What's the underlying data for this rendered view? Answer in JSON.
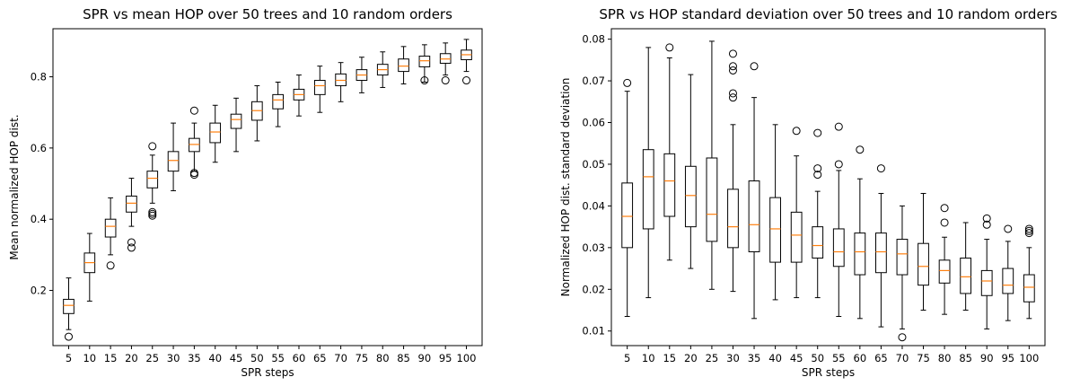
{
  "chart_data": [
    {
      "type": "box",
      "title": "SPR vs mean HOP over 50 trees and 10 random orders",
      "xlabel": "SPR steps",
      "ylabel": "Mean normalized HOP dist.",
      "categories": [
        "5",
        "10",
        "15",
        "20",
        "25",
        "30",
        "35",
        "40",
        "45",
        "50",
        "55",
        "60",
        "65",
        "70",
        "75",
        "80",
        "85",
        "90",
        "95",
        "100"
      ],
      "ylim": [
        0.045,
        0.935
      ],
      "yticks": [
        0.2,
        0.4,
        0.6,
        0.8
      ],
      "ytick_labels": [
        "0.2",
        "0.4",
        "0.6",
        "0.8"
      ],
      "grid": false,
      "boxes": [
        {
          "whislo": 0.09,
          "q1": 0.135,
          "med": 0.158,
          "q3": 0.175,
          "whishi": 0.235,
          "fliers": [
            0.07
          ]
        },
        {
          "whislo": 0.17,
          "q1": 0.25,
          "med": 0.278,
          "q3": 0.305,
          "whishi": 0.36,
          "fliers": []
        },
        {
          "whislo": 0.3,
          "q1": 0.35,
          "med": 0.38,
          "q3": 0.4,
          "whishi": 0.46,
          "fliers": [
            0.27
          ]
        },
        {
          "whislo": 0.38,
          "q1": 0.42,
          "med": 0.445,
          "q3": 0.465,
          "whishi": 0.515,
          "fliers": [
            0.335,
            0.32
          ]
        },
        {
          "whislo": 0.445,
          "q1": 0.488,
          "med": 0.515,
          "q3": 0.535,
          "whishi": 0.58,
          "fliers": [
            0.605,
            0.42,
            0.415,
            0.41
          ]
        },
        {
          "whislo": 0.48,
          "q1": 0.535,
          "med": 0.565,
          "q3": 0.59,
          "whishi": 0.67,
          "fliers": []
        },
        {
          "whislo": 0.535,
          "q1": 0.59,
          "med": 0.61,
          "q3": 0.627,
          "whishi": 0.67,
          "fliers": [
            0.705,
            0.53,
            0.525
          ]
        },
        {
          "whislo": 0.56,
          "q1": 0.615,
          "med": 0.645,
          "q3": 0.67,
          "whishi": 0.72,
          "fliers": []
        },
        {
          "whislo": 0.59,
          "q1": 0.655,
          "med": 0.68,
          "q3": 0.695,
          "whishi": 0.74,
          "fliers": []
        },
        {
          "whislo": 0.62,
          "q1": 0.678,
          "med": 0.705,
          "q3": 0.73,
          "whishi": 0.775,
          "fliers": []
        },
        {
          "whislo": 0.66,
          "q1": 0.71,
          "med": 0.735,
          "q3": 0.75,
          "whishi": 0.785,
          "fliers": []
        },
        {
          "whislo": 0.69,
          "q1": 0.735,
          "med": 0.75,
          "q3": 0.765,
          "whishi": 0.805,
          "fliers": []
        },
        {
          "whislo": 0.7,
          "q1": 0.75,
          "med": 0.775,
          "q3": 0.79,
          "whishi": 0.83,
          "fliers": []
        },
        {
          "whislo": 0.73,
          "q1": 0.775,
          "med": 0.79,
          "q3": 0.808,
          "whishi": 0.84,
          "fliers": []
        },
        {
          "whislo": 0.755,
          "q1": 0.79,
          "med": 0.805,
          "q3": 0.82,
          "whishi": 0.855,
          "fliers": []
        },
        {
          "whislo": 0.77,
          "q1": 0.805,
          "med": 0.82,
          "q3": 0.835,
          "whishi": 0.87,
          "fliers": []
        },
        {
          "whislo": 0.78,
          "q1": 0.815,
          "med": 0.83,
          "q3": 0.85,
          "whishi": 0.885,
          "fliers": []
        },
        {
          "whislo": 0.785,
          "q1": 0.828,
          "med": 0.845,
          "q3": 0.858,
          "whishi": 0.89,
          "fliers": [
            0.79
          ]
        },
        {
          "whislo": 0.805,
          "q1": 0.838,
          "med": 0.85,
          "q3": 0.865,
          "whishi": 0.895,
          "fliers": [
            0.79
          ]
        },
        {
          "whislo": 0.815,
          "q1": 0.848,
          "med": 0.862,
          "q3": 0.875,
          "whishi": 0.905,
          "fliers": [
            0.79
          ]
        }
      ]
    },
    {
      "type": "box",
      "title": "SPR vs HOP standard deviation over 50 trees and 10 random orders",
      "xlabel": "SPR steps",
      "ylabel": "Normalized HOP dist. standard deviation",
      "categories": [
        "5",
        "10",
        "15",
        "20",
        "25",
        "30",
        "35",
        "40",
        "45",
        "50",
        "55",
        "60",
        "65",
        "70",
        "75",
        "80",
        "85",
        "90",
        "95",
        "100"
      ],
      "ylim": [
        0.0065,
        0.0825
      ],
      "yticks": [
        0.01,
        0.02,
        0.03,
        0.04,
        0.05,
        0.06,
        0.07,
        0.08
      ],
      "ytick_labels": [
        "0.01",
        "0.02",
        "0.03",
        "0.04",
        "0.05",
        "0.06",
        "0.07",
        "0.08"
      ],
      "grid": false,
      "boxes": [
        {
          "whislo": 0.0135,
          "q1": 0.03,
          "med": 0.0375,
          "q3": 0.0455,
          "whishi": 0.0675,
          "fliers": [
            0.0695
          ]
        },
        {
          "whislo": 0.018,
          "q1": 0.0345,
          "med": 0.047,
          "q3": 0.0535,
          "whishi": 0.078,
          "fliers": []
        },
        {
          "whislo": 0.027,
          "q1": 0.0375,
          "med": 0.046,
          "q3": 0.0525,
          "whishi": 0.0755,
          "fliers": [
            0.078
          ]
        },
        {
          "whislo": 0.025,
          "q1": 0.035,
          "med": 0.0425,
          "q3": 0.0495,
          "whishi": 0.0715,
          "fliers": []
        },
        {
          "whislo": 0.02,
          "q1": 0.0315,
          "med": 0.038,
          "q3": 0.0515,
          "whishi": 0.0795,
          "fliers": []
        },
        {
          "whislo": 0.0195,
          "q1": 0.03,
          "med": 0.035,
          "q3": 0.044,
          "whishi": 0.0595,
          "fliers": [
            0.0765,
            0.0735,
            0.0725,
            0.067,
            0.066
          ]
        },
        {
          "whislo": 0.013,
          "q1": 0.029,
          "med": 0.0355,
          "q3": 0.046,
          "whishi": 0.066,
          "fliers": [
            0.0735
          ]
        },
        {
          "whislo": 0.0175,
          "q1": 0.0265,
          "med": 0.0345,
          "q3": 0.042,
          "whishi": 0.0595,
          "fliers": []
        },
        {
          "whislo": 0.018,
          "q1": 0.0265,
          "med": 0.033,
          "q3": 0.0385,
          "whishi": 0.052,
          "fliers": [
            0.058
          ]
        },
        {
          "whislo": 0.018,
          "q1": 0.0275,
          "med": 0.0305,
          "q3": 0.035,
          "whishi": 0.0435,
          "fliers": [
            0.0575,
            0.049,
            0.0475
          ]
        },
        {
          "whislo": 0.0135,
          "q1": 0.0255,
          "med": 0.029,
          "q3": 0.0345,
          "whishi": 0.0485,
          "fliers": [
            0.059,
            0.05
          ]
        },
        {
          "whislo": 0.013,
          "q1": 0.0235,
          "med": 0.029,
          "q3": 0.0335,
          "whishi": 0.0465,
          "fliers": [
            0.0535
          ]
        },
        {
          "whislo": 0.011,
          "q1": 0.024,
          "med": 0.029,
          "q3": 0.0335,
          "whishi": 0.043,
          "fliers": [
            0.049
          ]
        },
        {
          "whislo": 0.0105,
          "q1": 0.0235,
          "med": 0.0285,
          "q3": 0.032,
          "whishi": 0.04,
          "fliers": [
            0.0085
          ]
        },
        {
          "whislo": 0.015,
          "q1": 0.021,
          "med": 0.0255,
          "q3": 0.031,
          "whishi": 0.043,
          "fliers": []
        },
        {
          "whislo": 0.014,
          "q1": 0.0215,
          "med": 0.0245,
          "q3": 0.027,
          "whishi": 0.0325,
          "fliers": [
            0.0395,
            0.036
          ]
        },
        {
          "whislo": 0.015,
          "q1": 0.019,
          "med": 0.023,
          "q3": 0.0275,
          "whishi": 0.036,
          "fliers": []
        },
        {
          "whislo": 0.0105,
          "q1": 0.0185,
          "med": 0.022,
          "q3": 0.0245,
          "whishi": 0.032,
          "fliers": [
            0.037,
            0.0355
          ]
        },
        {
          "whislo": 0.0125,
          "q1": 0.019,
          "med": 0.021,
          "q3": 0.025,
          "whishi": 0.0315,
          "fliers": [
            0.0345
          ]
        },
        {
          "whislo": 0.013,
          "q1": 0.017,
          "med": 0.0205,
          "q3": 0.0235,
          "whishi": 0.03,
          "fliers": [
            0.0345,
            0.034,
            0.0335
          ]
        }
      ]
    }
  ]
}
